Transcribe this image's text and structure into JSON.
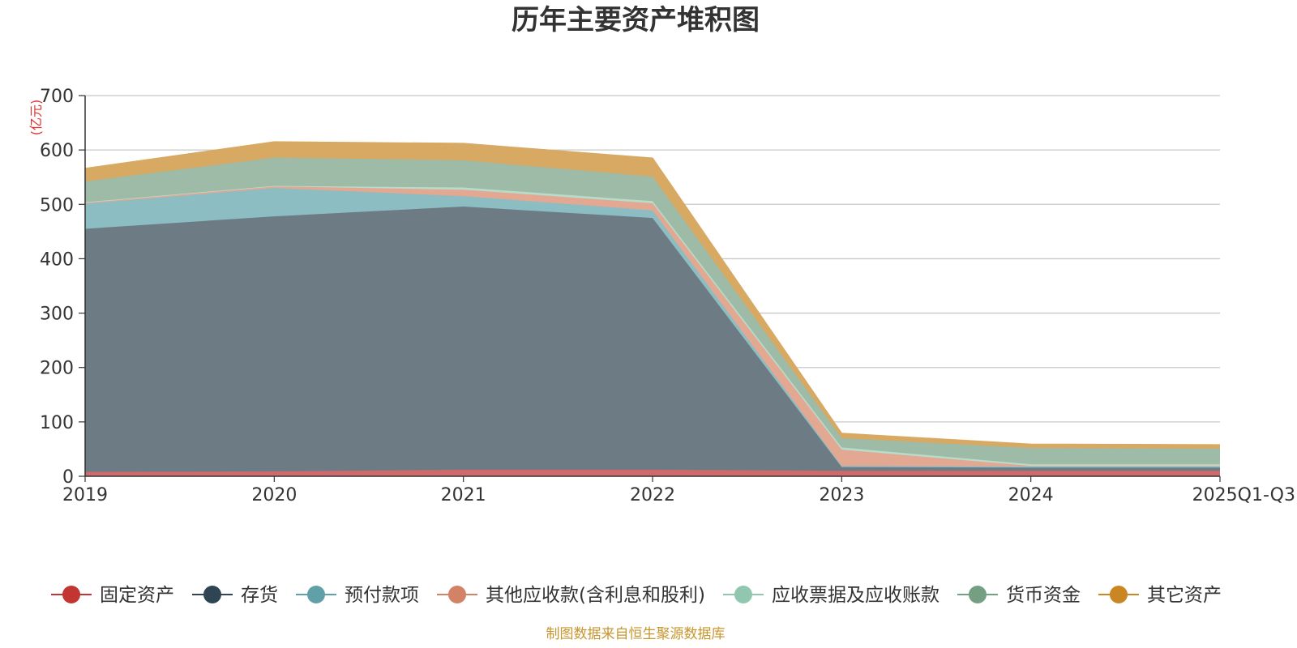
{
  "chart_data": {
    "type": "area",
    "stacked": true,
    "title": "历年主要资产堆积图",
    "unit_label": "(亿元)",
    "categories": [
      "2019",
      "2020",
      "2021",
      "2022",
      "2023",
      "2024",
      "2025Q1-Q3"
    ],
    "ylim": [
      0,
      700
    ],
    "yticks": [
      "0",
      "100",
      "200",
      "300",
      "400",
      "500",
      "600",
      "700"
    ],
    "grid": true,
    "legend_position": "bottom",
    "series": [
      {
        "name": "固定资产",
        "color": "#c23531",
        "fill": "#d06a6a",
        "values": [
          8,
          9,
          12,
          12,
          10,
          10,
          10
        ]
      },
      {
        "name": "存货",
        "color": "#2f4554",
        "fill": "#6d7b85",
        "values": [
          447,
          469,
          484,
          463,
          7,
          6,
          6
        ]
      },
      {
        "name": "预付款项",
        "color": "#61a0a8",
        "fill": "#8bbdc2",
        "values": [
          46,
          52,
          19,
          14,
          2,
          2,
          2
        ]
      },
      {
        "name": "其他应收款(含利息和股利)",
        "color": "#d48265",
        "fill": "#e2a892",
        "values": [
          2,
          3,
          12,
          13,
          30,
          1,
          1
        ]
      },
      {
        "name": "应收票据及应收账款",
        "color": "#91c7ae",
        "fill": "#b8dccb",
        "values": [
          1,
          1,
          4,
          4,
          4,
          3,
          3
        ]
      },
      {
        "name": "货币资金",
        "color": "#749f83",
        "fill": "#9dbba7",
        "values": [
          38,
          52,
          50,
          45,
          17,
          30,
          29
        ]
      },
      {
        "name": "其它资产",
        "color": "#ca8622",
        "fill": "#d8a962",
        "values": [
          24,
          29,
          31,
          34,
          9,
          7,
          7
        ]
      }
    ]
  },
  "source_note": "制图数据来自恒生聚源数据库"
}
